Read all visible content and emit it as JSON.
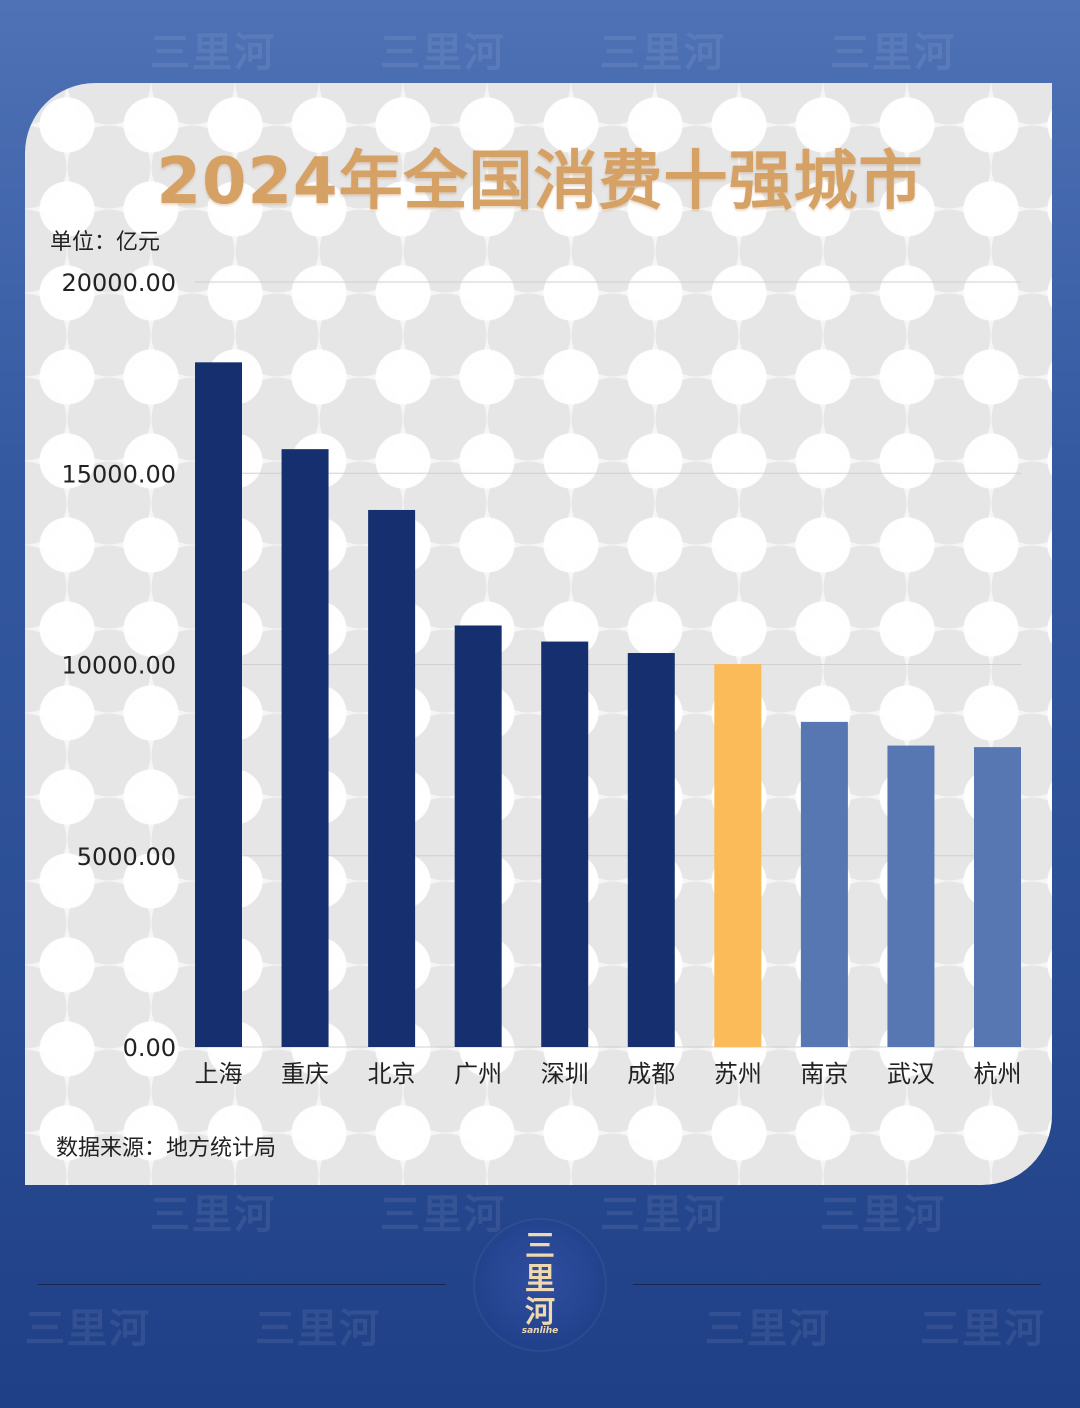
{
  "watermark": "三里河",
  "logo": {
    "text": "三\n里\n河",
    "subtitle": "sanlihe"
  },
  "source": "数据来源：地方统计局",
  "colors": {
    "dark": "#16306f",
    "highlight": "#fbbb58",
    "light": "#5777b2"
  },
  "chart_data": {
    "type": "bar",
    "title": "2024年全国消费十强城市",
    "unit_label": "单位：亿元",
    "ylim": [
      0,
      20000
    ],
    "yticks": [
      0,
      5000,
      10000,
      15000,
      20000
    ],
    "ytick_labels": [
      "0.00",
      "5000.00",
      "10000.00",
      "15000.00",
      "20000.00"
    ],
    "grid": true,
    "categories": [
      "上海",
      "重庆",
      "北京",
      "广州",
      "深圳",
      "成都",
      "苏州",
      "南京",
      "武汉",
      "杭州"
    ],
    "values": [
      17900,
      15630,
      14040,
      11020,
      10600,
      10300,
      10010,
      8500,
      7880,
      7840
    ],
    "bar_colors": [
      "#16306f",
      "#16306f",
      "#16306f",
      "#16306f",
      "#16306f",
      "#16306f",
      "#fbbb58",
      "#5777b2",
      "#5777b2",
      "#5777b2"
    ]
  }
}
